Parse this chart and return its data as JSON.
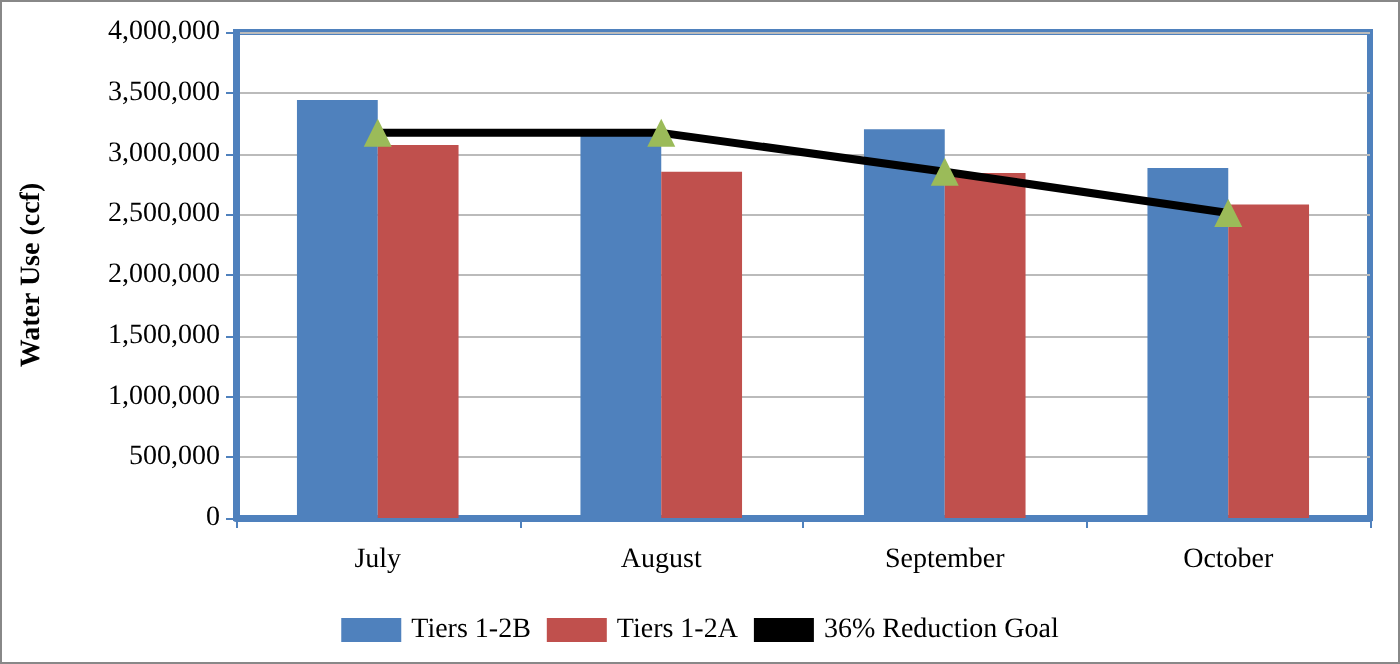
{
  "chart_data": {
    "type": "bar",
    "ylabel": "Water Use (ccf)",
    "categories": [
      "July",
      "August",
      "September",
      "October"
    ],
    "series": [
      {
        "name": "Tiers 1-2B",
        "color": "#4f81bd",
        "values": [
          3440000,
          3180000,
          3200000,
          2880000
        ]
      },
      {
        "name": "Tiers 1-2A",
        "color": "#c0504d",
        "values": [
          3070000,
          2850000,
          2840000,
          2580000
        ]
      },
      {
        "name": "36% Reduction Goal",
        "type": "line",
        "color": "#000000",
        "marker": "triangle",
        "values": [
          3170000,
          3170000,
          2850000,
          2510000
        ]
      }
    ],
    "ylim": [
      0,
      4000000
    ],
    "yticks": [
      0,
      {
        "value": 500000,
        "label": "500,000"
      },
      {
        "value": 1000000,
        "label": "1,000,000"
      },
      {
        "value": 1500000,
        "label": "1,500,000"
      },
      {
        "value": 2000000,
        "label": "2,000,000"
      },
      {
        "value": 2500000,
        "label": "2,500,000"
      },
      {
        "value": 3000000,
        "label": "3,000,000"
      },
      {
        "value": 3500000,
        "label": "3,500,000"
      },
      {
        "value": 4000000,
        "label": "4,000,000"
      }
    ],
    "grid": "y",
    "legend": "bottom"
  }
}
